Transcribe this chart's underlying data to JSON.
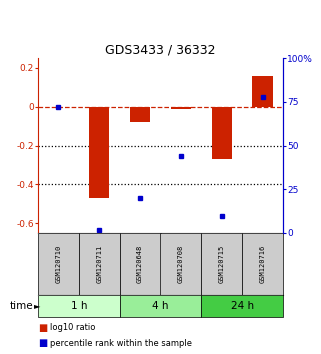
{
  "title": "GDS3433 / 36332",
  "samples": [
    "GSM120710",
    "GSM120711",
    "GSM120648",
    "GSM120708",
    "GSM120715",
    "GSM120716"
  ],
  "time_groups": [
    {
      "label": "1 h",
      "start": 0,
      "end": 1,
      "color": "#ccffcc"
    },
    {
      "label": "4 h",
      "start": 2,
      "end": 3,
      "color": "#99ee99"
    },
    {
      "label": "24 h",
      "start": 4,
      "end": 5,
      "color": "#44cc44"
    }
  ],
  "log10_ratio": [
    0.0,
    -0.47,
    -0.08,
    -0.01,
    -0.27,
    0.16
  ],
  "percentile_rank": [
    72,
    2,
    20,
    44,
    10,
    78
  ],
  "ylim_left": [
    -0.65,
    0.25
  ],
  "ylim_right": [
    0,
    100
  ],
  "bar_color": "#cc2200",
  "dot_color": "#0000cc",
  "left_axis_color": "#cc2200",
  "right_axis_color": "#0000cc",
  "sample_box_color": "#cccccc",
  "legend_red_label": "log10 ratio",
  "legend_blue_label": "percentile rank within the sample"
}
